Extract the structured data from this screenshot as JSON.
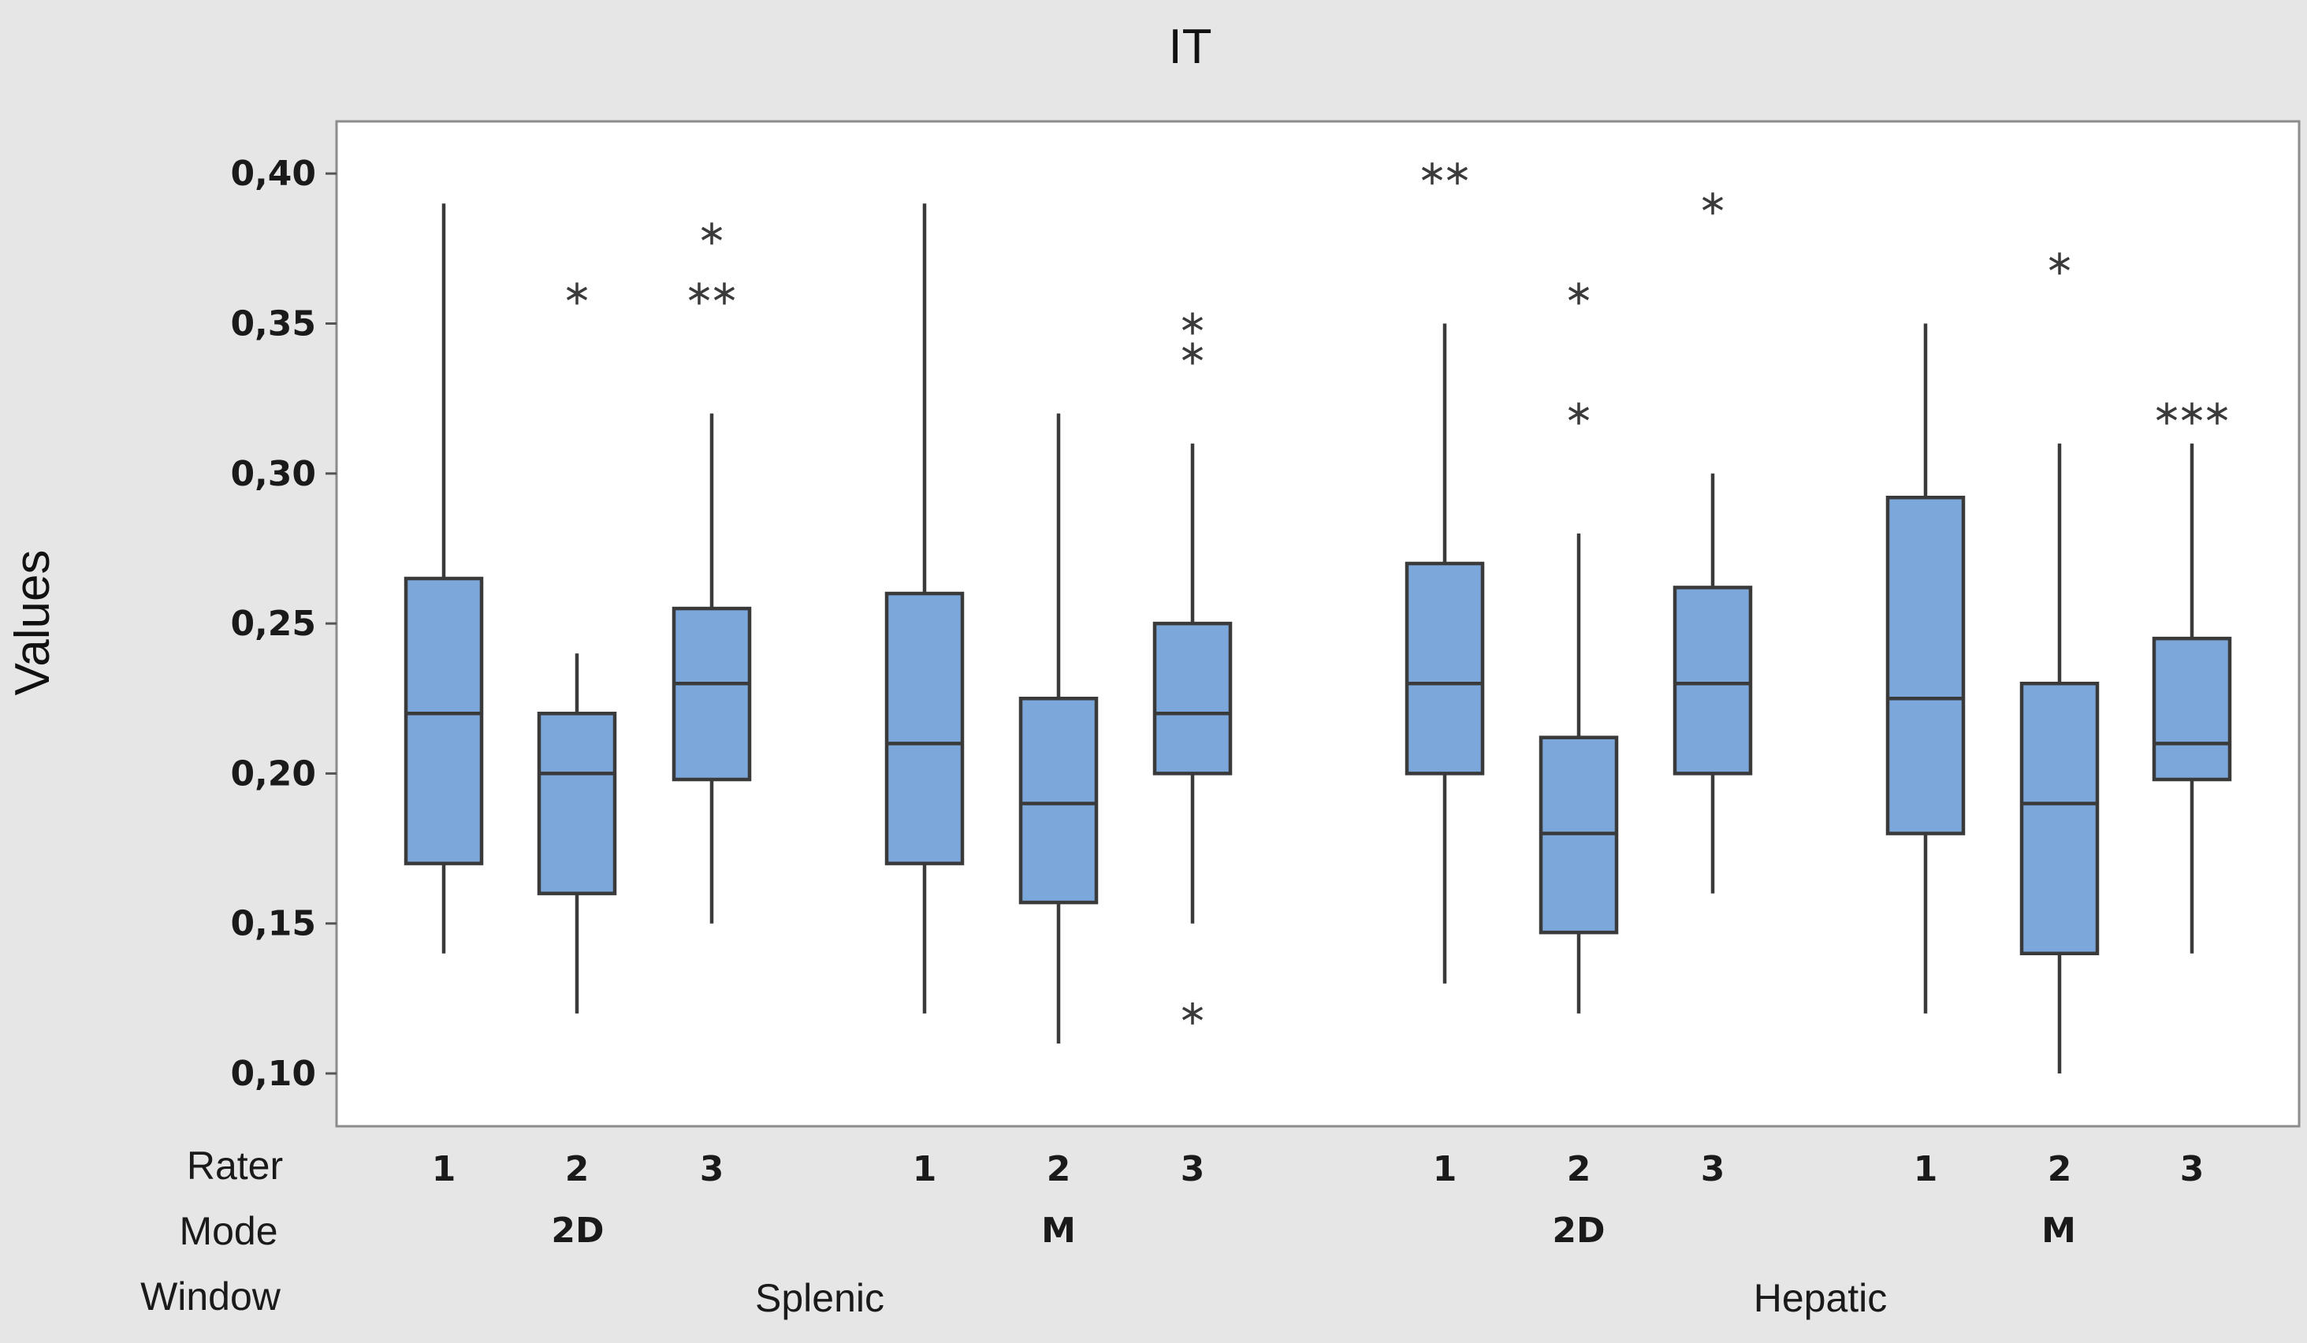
{
  "chart_data": {
    "type": "box",
    "title": "IT",
    "ylabel": "Values",
    "ylim": [
      0.09,
      0.415
    ],
    "yticks": [
      {
        "value": 0.1,
        "label": "0,10"
      },
      {
        "value": 0.15,
        "label": "0,15"
      },
      {
        "value": 0.2,
        "label": "0,20"
      },
      {
        "value": 0.25,
        "label": "0,25"
      },
      {
        "value": 0.3,
        "label": "0,30"
      },
      {
        "value": 0.35,
        "label": "0,35"
      },
      {
        "value": 0.4,
        "label": "0,40"
      }
    ],
    "row_titles": {
      "rater": "Rater",
      "mode": "Mode",
      "window": "Window"
    },
    "box_color": "#7ca7da",
    "line_color": "#3a3a3a",
    "windows": [
      {
        "label": "Splenic",
        "modes": [
          {
            "label": "2D",
            "raters": [
              {
                "rater": "1",
                "whisker_low": 0.14,
                "q1": 0.17,
                "median": 0.22,
                "q3": 0.265,
                "whisker_high": 0.39,
                "outliers": []
              },
              {
                "rater": "2",
                "whisker_low": 0.12,
                "q1": 0.16,
                "median": 0.2,
                "q3": 0.22,
                "whisker_high": 0.24,
                "outliers": [
                  0.36
                ]
              },
              {
                "rater": "3",
                "whisker_low": 0.15,
                "q1": 0.198,
                "median": 0.23,
                "q3": 0.255,
                "whisker_high": 0.32,
                "outliers": [
                  0.36,
                  0.36,
                  0.38
                ]
              }
            ]
          },
          {
            "label": "M",
            "raters": [
              {
                "rater": "1",
                "whisker_low": 0.12,
                "q1": 0.17,
                "median": 0.21,
                "q3": 0.26,
                "whisker_high": 0.39,
                "outliers": []
              },
              {
                "rater": "2",
                "whisker_low": 0.11,
                "q1": 0.157,
                "median": 0.19,
                "q3": 0.225,
                "whisker_high": 0.32,
                "outliers": []
              },
              {
                "rater": "3",
                "whisker_low": 0.15,
                "q1": 0.2,
                "median": 0.22,
                "q3": 0.25,
                "whisker_high": 0.31,
                "outliers": [
                  0.12,
                  0.34,
                  0.35
                ]
              }
            ]
          }
        ]
      },
      {
        "label": "Hepatic",
        "modes": [
          {
            "label": "2D",
            "raters": [
              {
                "rater": "1",
                "whisker_low": 0.13,
                "q1": 0.2,
                "median": 0.23,
                "q3": 0.27,
                "whisker_high": 0.35,
                "outliers": [
                  0.4,
                  0.4
                ]
              },
              {
                "rater": "2",
                "whisker_low": 0.12,
                "q1": 0.147,
                "median": 0.18,
                "q3": 0.212,
                "whisker_high": 0.28,
                "outliers": [
                  0.32,
                  0.36
                ]
              },
              {
                "rater": "3",
                "whisker_low": 0.16,
                "q1": 0.2,
                "median": 0.23,
                "q3": 0.262,
                "whisker_high": 0.3,
                "outliers": [
                  0.39
                ]
              }
            ]
          },
          {
            "label": "M",
            "raters": [
              {
                "rater": "1",
                "whisker_low": 0.12,
                "q1": 0.18,
                "median": 0.225,
                "q3": 0.292,
                "whisker_high": 0.35,
                "outliers": []
              },
              {
                "rater": "2",
                "whisker_low": 0.1,
                "q1": 0.14,
                "median": 0.19,
                "q3": 0.23,
                "whisker_high": 0.31,
                "outliers": [
                  0.37
                ]
              },
              {
                "rater": "3",
                "whisker_low": 0.14,
                "q1": 0.198,
                "median": 0.21,
                "q3": 0.245,
                "whisker_high": 0.31,
                "outliers": [
                  0.32,
                  0.32,
                  0.32
                ]
              }
            ]
          }
        ]
      }
    ]
  }
}
